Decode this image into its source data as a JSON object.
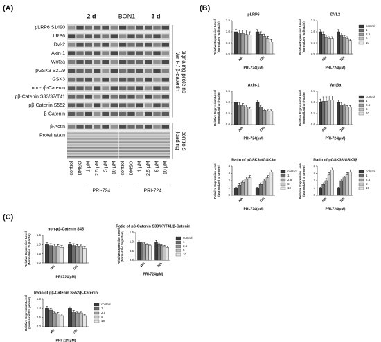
{
  "panels": [
    "(A)",
    "(B)",
    "(C)"
  ],
  "blot": {
    "header": [
      "2 d",
      "BON1",
      "3 d"
    ],
    "rows": [
      "pLRP6 S1490",
      "LRP6",
      "Dvl-2",
      "Axin-1",
      "Wnt3a",
      "pGSK3 S21/9",
      "GSK3",
      "non-pβ-Catenin",
      "pβ-Catenin S33/37/T41",
      "pβ-Catenin S552",
      "β-Catenin"
    ],
    "loading_rows": [
      "β-Actin",
      "Proteinstain"
    ],
    "side_labels": [
      [
        "Wnt- / β-catenin",
        "signaling proteins"
      ],
      [
        "loading",
        "controls"
      ]
    ],
    "lanes": [
      "control",
      "DMSO",
      "1 μM",
      "2.5 μM",
      "5 μM",
      "10 μM"
    ],
    "treatment": "PRI-724"
  },
  "chart_data": [
    {
      "type": "bar",
      "title": "pLRP6",
      "ylabel": [
        "Relative Expression Level",
        "(Normalized to β-actin)"
      ],
      "xlabel": "PRI-724(μM)",
      "categories": [
        "48h",
        "72h"
      ],
      "ylim": [
        0,
        1.5
      ],
      "yticks": [
        {
          "value": 0,
          "label": "0.0"
        },
        {
          "value": 0.5,
          "label": "0.5"
        },
        {
          "value": 1,
          "label": "1.0"
        },
        {
          "value": 1.5,
          "label": "1.5"
        }
      ],
      "series": [
        {
          "name": "control",
          "color": "#3a3a3a",
          "values": [
            1.0,
            1.0
          ],
          "errors": [
            0.1,
            0.1
          ]
        },
        {
          "name": "1",
          "color": "#6e6e6e",
          "values": [
            0.95,
            0.9
          ],
          "errors": [
            0.12,
            0.1
          ]
        },
        {
          "name": "2.5",
          "color": "#9a9a9a",
          "values": [
            0.92,
            0.8
          ],
          "errors": [
            0.15,
            0.1
          ]
        },
        {
          "name": "5",
          "color": "#c4c4c4",
          "values": [
            0.88,
            0.7
          ],
          "errors": [
            0.2,
            0.1
          ]
        },
        {
          "name": "10",
          "color": "#e6e6e6",
          "values": [
            0.85,
            0.55
          ],
          "errors": [
            0.15,
            0.1
          ]
        }
      ]
    },
    {
      "type": "bar",
      "title": "DVL2",
      "ylabel": [
        "Relative Expression Level",
        "(Normalized to β-actin)"
      ],
      "xlabel": "PRI-724(μM)",
      "categories": [
        "48h",
        "72h"
      ],
      "ylim": [
        0,
        1.5
      ],
      "yticks": [
        {
          "value": 0,
          "label": "0.0"
        },
        {
          "value": 0.5,
          "label": "0.5"
        },
        {
          "value": 1,
          "label": "1.0"
        },
        {
          "value": 1.5,
          "label": "1.5"
        }
      ],
      "legend": "right",
      "series": [
        {
          "name": "control",
          "color": "#3a3a3a",
          "values": [
            1.0,
            1.0
          ],
          "errors": [
            0.1,
            0.1
          ]
        },
        {
          "name": "1",
          "color": "#6e6e6e",
          "values": [
            0.9,
            0.85
          ],
          "errors": [
            0.1,
            0.1
          ]
        },
        {
          "name": "2.5",
          "color": "#9a9a9a",
          "values": [
            0.75,
            0.75
          ],
          "errors": [
            0.1,
            0.08
          ]
        },
        {
          "name": "5",
          "color": "#c4c4c4",
          "values": [
            0.7,
            0.7
          ],
          "errors": [
            0.08,
            0.08
          ]
        },
        {
          "name": "10",
          "color": "#e6e6e6",
          "values": [
            0.7,
            0.6
          ],
          "errors": [
            0.08,
            0.06
          ]
        }
      ]
    },
    {
      "type": "bar",
      "title": "Axin-1",
      "ylabel": [
        "Relative Expression Level",
        "(Normalized to β-actin)"
      ],
      "xlabel": "PRI-724(μM)",
      "categories": [
        "48h",
        "72h"
      ],
      "ylim": [
        0,
        1.5
      ],
      "yticks": [
        {
          "value": 0,
          "label": "0.0"
        },
        {
          "value": 0.5,
          "label": "0.5"
        },
        {
          "value": 1,
          "label": "1.0"
        },
        {
          "value": 1.5,
          "label": "1.5"
        }
      ],
      "series": [
        {
          "name": "control",
          "color": "#3a3a3a",
          "values": [
            1.0,
            1.0
          ],
          "errors": [
            0.1,
            0.1
          ]
        },
        {
          "name": "1",
          "color": "#6e6e6e",
          "values": [
            0.9,
            0.8
          ],
          "errors": [
            0.1,
            0.08
          ]
        },
        {
          "name": "2.5",
          "color": "#9a9a9a",
          "values": [
            0.85,
            0.65
          ],
          "errors": [
            0.1,
            0.06
          ]
        },
        {
          "name": "5",
          "color": "#c4c4c4",
          "values": [
            0.8,
            0.6
          ],
          "errors": [
            0.08,
            0.06
          ]
        },
        {
          "name": "10",
          "color": "#e6e6e6",
          "values": [
            0.7,
            0.6
          ],
          "errors": [
            0.08,
            0.06
          ]
        }
      ]
    },
    {
      "type": "bar",
      "title": "Wnt3a",
      "ylabel": [
        "Relative Expression Level",
        "(Normalized to β-actin)"
      ],
      "xlabel": "PRI-724(μM)",
      "categories": [
        "48h",
        "72h"
      ],
      "ylim": [
        0,
        1.5
      ],
      "yticks": [
        {
          "value": 0,
          "label": "0.0"
        },
        {
          "value": 0.5,
          "label": "0.5"
        },
        {
          "value": 1,
          "label": "1.0"
        },
        {
          "value": 1.5,
          "label": "1.5"
        }
      ],
      "legend": "right",
      "series": [
        {
          "name": "control",
          "color": "#3a3a3a",
          "values": [
            1.0,
            1.0
          ],
          "errors": [
            0.15,
            0.1
          ]
        },
        {
          "name": "1",
          "color": "#6e6e6e",
          "values": [
            1.05,
            0.9
          ],
          "errors": [
            0.2,
            0.08
          ]
        },
        {
          "name": "2.5",
          "color": "#9a9a9a",
          "values": [
            1.05,
            0.85
          ],
          "errors": [
            0.2,
            0.08
          ]
        },
        {
          "name": "5",
          "color": "#c4c4c4",
          "values": [
            1.1,
            0.8
          ],
          "errors": [
            0.2,
            0.06
          ]
        },
        {
          "name": "10",
          "color": "#e6e6e6",
          "values": [
            1.1,
            0.8
          ],
          "errors": [
            0.2,
            0.06
          ]
        }
      ]
    },
    {
      "type": "bar",
      "title": "Ratio of pGSK3α/GSK3α",
      "ylabel": [
        "Relative Expression Level",
        "(Normalized to protein)"
      ],
      "xlabel": "PRI-724(μM)",
      "categories": [
        "48h",
        "72h"
      ],
      "ylim": [
        0,
        4
      ],
      "yticks": [
        0,
        1,
        2,
        3,
        4
      ],
      "legend": "right",
      "series": [
        {
          "name": "control",
          "color": "#3a3a3a",
          "values": [
            1.0,
            1.0
          ],
          "errors": [
            0.1,
            0.1
          ]
        },
        {
          "name": "1",
          "color": "#6e6e6e",
          "values": [
            1.4,
            1.5
          ],
          "errors": [
            0.2,
            0.2
          ]
        },
        {
          "name": "2.5",
          "color": "#9a9a9a",
          "values": [
            1.8,
            2.0
          ],
          "errors": [
            0.2,
            0.2
          ]
        },
        {
          "name": "5",
          "color": "#c4c4c4",
          "values": [
            2.2,
            2.4
          ],
          "errors": [
            0.3,
            0.3
          ]
        },
        {
          "name": "10",
          "color": "#e6e6e6",
          "values": [
            2.4,
            3.2
          ],
          "errors": [
            0.3,
            0.3
          ]
        }
      ]
    },
    {
      "type": "bar",
      "title": "Ratio of pGSK3β/GSK3β",
      "ylabel": [
        "Relative Expression Level",
        "(Normalized to protein)"
      ],
      "xlabel": "PRI-724(μM)",
      "categories": [
        "48h",
        "72h"
      ],
      "ylim": [
        0,
        4
      ],
      "yticks": [
        0,
        1,
        2,
        3,
        4
      ],
      "legend": "right",
      "series": [
        {
          "name": "control",
          "color": "#3a3a3a",
          "values": [
            1.0,
            1.0
          ],
          "errors": [
            0.1,
            0.1
          ]
        },
        {
          "name": "1",
          "color": "#6e6e6e",
          "values": [
            1.5,
            2.0
          ],
          "errors": [
            0.2,
            0.2
          ]
        },
        {
          "name": "2.5",
          "color": "#9a9a9a",
          "values": [
            2.0,
            2.4
          ],
          "errors": [
            0.3,
            0.2
          ]
        },
        {
          "name": "5",
          "color": "#c4c4c4",
          "values": [
            2.8,
            2.8
          ],
          "errors": [
            0.3,
            0.3
          ]
        },
        {
          "name": "10",
          "color": "#e6e6e6",
          "values": [
            3.5,
            3.2
          ],
          "errors": [
            0.3,
            0.3
          ]
        }
      ]
    },
    {
      "type": "bar",
      "title": "non-pβ-Catenin S45",
      "ylabel": [
        "Relative Expression Level",
        "(Normalized to β-actin)"
      ],
      "xlabel": "PRI-724(μM)",
      "categories": [
        "48h",
        "72h"
      ],
      "ylim": [
        0,
        1.5
      ],
      "yticks": [
        {
          "value": 0,
          "label": "0.0"
        },
        {
          "value": 0.5,
          "label": "0.5"
        },
        {
          "value": 1,
          "label": "1.0"
        },
        {
          "value": 1.5,
          "label": "1.5"
        }
      ],
      "series": [
        {
          "name": "control",
          "color": "#3a3a3a",
          "values": [
            1.0,
            1.0
          ],
          "errors": [
            0.1,
            0.1
          ]
        },
        {
          "name": "1",
          "color": "#6e6e6e",
          "values": [
            0.95,
            0.95
          ],
          "errors": [
            0.1,
            0.1
          ]
        },
        {
          "name": "2.5",
          "color": "#9a9a9a",
          "values": [
            0.92,
            0.9
          ],
          "errors": [
            0.1,
            0.1
          ]
        },
        {
          "name": "5",
          "color": "#c4c4c4",
          "values": [
            0.9,
            0.9
          ],
          "errors": [
            0.1,
            0.08
          ]
        },
        {
          "name": "10",
          "color": "#e6e6e6",
          "values": [
            0.85,
            0.8
          ],
          "errors": [
            0.1,
            0.08
          ]
        }
      ]
    },
    {
      "type": "bar",
      "title": "Ratio of pβ-Catenin S33/37/T41/β-Catenin",
      "ylabel": [
        "Relative Expression Level",
        "(Normalized to protein)"
      ],
      "xlabel": "PRI-724(μM)",
      "categories": [
        "48h",
        "72h"
      ],
      "ylim": [
        0,
        1.5
      ],
      "yticks": [
        {
          "value": 0,
          "label": "0.0"
        },
        {
          "value": 0.5,
          "label": "0.5"
        },
        {
          "value": 1,
          "label": "1.0"
        },
        {
          "value": 1.5,
          "label": "1.5"
        }
      ],
      "legend": "right",
      "series": [
        {
          "name": "control",
          "color": "#3a3a3a",
          "values": [
            1.0,
            1.0
          ],
          "errors": [
            0.05,
            0.08
          ]
        },
        {
          "name": "1",
          "color": "#6e6e6e",
          "values": [
            0.95,
            0.85
          ],
          "errors": [
            0.05,
            0.08
          ]
        },
        {
          "name": "2.5",
          "color": "#9a9a9a",
          "values": [
            0.9,
            0.8
          ],
          "errors": [
            0.05,
            0.06
          ]
        },
        {
          "name": "5",
          "color": "#c4c4c4",
          "values": [
            0.85,
            0.75
          ],
          "errors": [
            0.05,
            0.06
          ]
        },
        {
          "name": "10",
          "color": "#e6e6e6",
          "values": [
            0.8,
            0.7
          ],
          "errors": [
            0.05,
            0.06
          ]
        }
      ]
    },
    {
      "type": "bar",
      "title": "Ratio of pβ-Catenin S552/β-Catenin",
      "ylabel": [
        "Relative Expression Level",
        "(Normalized to protein)"
      ],
      "xlabel": "PRI-724(μM)",
      "categories": [
        "48h",
        "72h"
      ],
      "ylim": [
        0,
        1.5
      ],
      "yticks": [
        {
          "value": 0,
          "label": "0.0"
        },
        {
          "value": 0.5,
          "label": "0.5"
        },
        {
          "value": 1,
          "label": "1.0"
        },
        {
          "value": 1.5,
          "label": "1.5"
        }
      ],
      "legend": "right",
      "series": [
        {
          "name": "control",
          "color": "#3a3a3a",
          "values": [
            1.0,
            1.0
          ],
          "errors": [
            0.1,
            0.08
          ]
        },
        {
          "name": "1",
          "color": "#6e6e6e",
          "values": [
            0.9,
            0.8
          ],
          "errors": [
            0.1,
            0.08
          ]
        },
        {
          "name": "2.5",
          "color": "#9a9a9a",
          "values": [
            0.75,
            0.75
          ],
          "errors": [
            0.08,
            0.08
          ]
        },
        {
          "name": "5",
          "color": "#c4c4c4",
          "values": [
            0.7,
            0.75
          ],
          "errors": [
            0.08,
            0.08
          ]
        },
        {
          "name": "10",
          "color": "#e6e6e6",
          "values": [
            0.6,
            0.6
          ],
          "errors": [
            0.08,
            0.06
          ]
        }
      ]
    }
  ]
}
